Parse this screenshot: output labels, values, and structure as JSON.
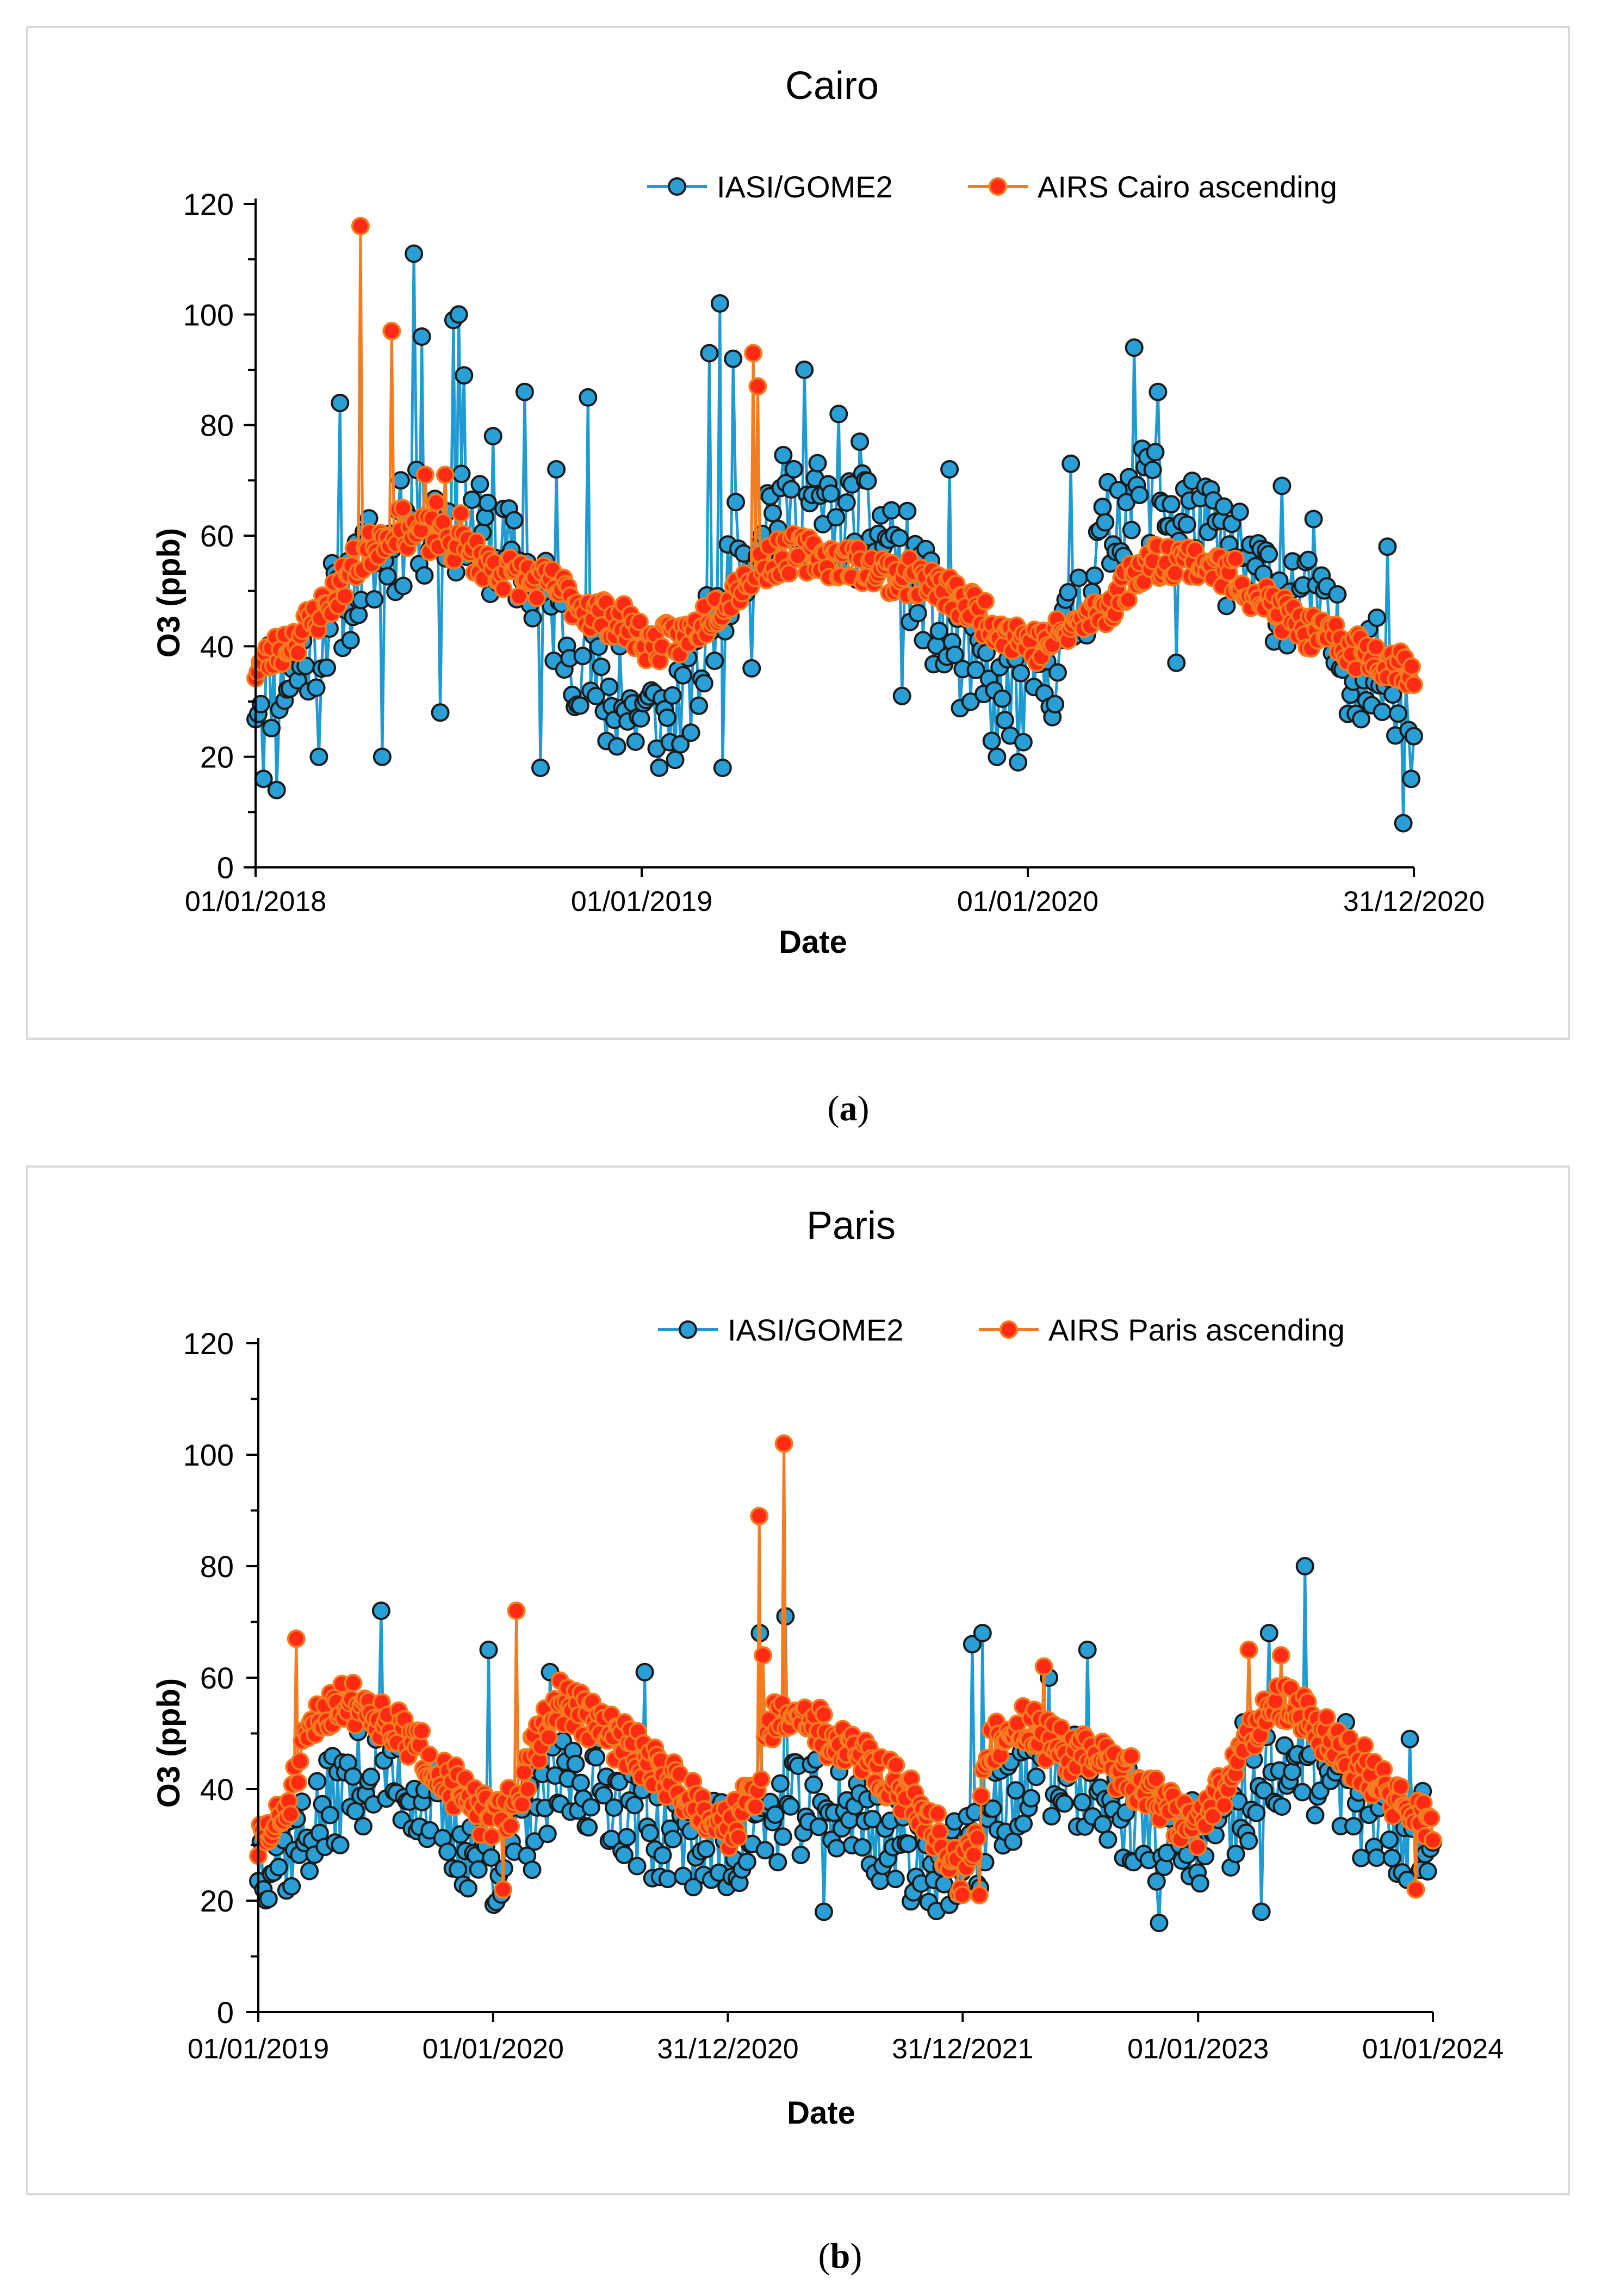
{
  "chart_data": [
    {
      "type": "line",
      "title": "Cairo",
      "caption": "a",
      "xlabel": "Date",
      "ylabel": "O3 (ppb)",
      "ylim": [
        0,
        120
      ],
      "yticks": [
        0,
        20,
        40,
        60,
        80,
        100,
        120
      ],
      "xlim": [
        "2018-01-01",
        "2020-12-31"
      ],
      "xticks": [
        {
          "date": "2018-01-01",
          "label": "01/01/2018"
        },
        {
          "date": "2019-01-01",
          "label": "01/01/2019"
        },
        {
          "date": "2020-01-01",
          "label": "01/01/2020"
        },
        {
          "date": "2020-12-31",
          "label": "31/12/2020"
        }
      ],
      "legend_position": "top-right",
      "series": [
        {
          "name": "IASI/GOME2",
          "color": "#1f9bd1",
          "marker_fill": "#2a9fd6",
          "marker_edge": "#1a1a1a",
          "knots": [
            [
              0,
              32
            ],
            [
              40,
              36
            ],
            [
              70,
              46
            ],
            [
              110,
              55
            ],
            [
              150,
              62
            ],
            [
              190,
              62
            ],
            [
              230,
              58
            ],
            [
              280,
              46
            ],
            [
              330,
              30
            ],
            [
              365,
              27
            ],
            [
              390,
              26
            ],
            [
              420,
              35
            ],
            [
              450,
              55
            ],
            [
              480,
              64
            ],
            [
              520,
              66
            ],
            [
              560,
              62
            ],
            [
              600,
              60
            ],
            [
              630,
              50
            ],
            [
              660,
              38
            ],
            [
              700,
              31
            ],
            [
              730,
              32
            ],
            [
              760,
              38
            ],
            [
              800,
              58
            ],
            [
              830,
              70
            ],
            [
              870,
              65
            ],
            [
              910,
              58
            ],
            [
              950,
              52
            ],
            [
              990,
              48
            ],
            [
              1030,
              38
            ],
            [
              1095,
              32
            ]
          ],
          "amplitude": 10,
          "spikes": [
            [
              8,
              16
            ],
            [
              20,
              14
            ],
            [
              60,
              20
            ],
            [
              80,
              84
            ],
            [
              120,
              20
            ],
            [
              136,
              70
            ],
            [
              150,
              111
            ],
            [
              156,
              96
            ],
            [
              175,
              28
            ],
            [
              188,
              99
            ],
            [
              192,
              100
            ],
            [
              198,
              89
            ],
            [
              225,
              78
            ],
            [
              254,
              86
            ],
            [
              270,
              18
            ],
            [
              285,
              72
            ],
            [
              315,
              85
            ],
            [
              345,
              40
            ],
            [
              428,
              93
            ],
            [
              440,
              102
            ],
            [
              442,
              18
            ],
            [
              452,
              92
            ],
            [
              470,
              36
            ],
            [
              520,
              90
            ],
            [
              550,
              82
            ],
            [
              570,
              77
            ],
            [
              610,
              31
            ],
            [
              655,
              72
            ],
            [
              700,
              20
            ],
            [
              721,
              19
            ],
            [
              770,
              73
            ],
            [
              830,
              94
            ],
            [
              852,
              86
            ],
            [
              870,
              37
            ],
            [
              970,
              69
            ],
            [
              1000,
              63
            ],
            [
              1070,
              58
            ],
            [
              1085,
              8
            ],
            [
              1092,
              16
            ]
          ],
          "n_points": 440,
          "seed": 11
        },
        {
          "name": "AIRS Cairo ascending",
          "color": "#f47c20",
          "marker_fill": "#ff2a14",
          "marker_edge": "#f47c20",
          "knots": [
            [
              0,
              36
            ],
            [
              40,
              42
            ],
            [
              70,
              48
            ],
            [
              95,
              55
            ],
            [
              130,
              62
            ],
            [
              165,
              60
            ],
            [
              200,
              57
            ],
            [
              240,
              53
            ],
            [
              280,
              51
            ],
            [
              320,
              46
            ],
            [
              350,
              44
            ],
            [
              375,
              40
            ],
            [
              410,
              42
            ],
            [
              450,
              50
            ],
            [
              480,
              55
            ],
            [
              510,
              57
            ],
            [
              540,
              56
            ],
            [
              570,
              55
            ],
            [
              600,
              53
            ],
            [
              630,
              52
            ],
            [
              660,
              49
            ],
            [
              700,
              44
            ],
            [
              740,
              40
            ],
            [
              770,
              43
            ],
            [
              810,
              48
            ],
            [
              840,
              55
            ],
            [
              870,
              56
            ],
            [
              900,
              55
            ],
            [
              930,
              52
            ],
            [
              970,
              46
            ],
            [
              1000,
              42
            ],
            [
              1030,
              40
            ],
            [
              1060,
              38
            ],
            [
              1095,
              36
            ]
          ],
          "amplitude": 3.5,
          "spikes": [
            [
              100,
              116
            ],
            [
              128,
              97
            ],
            [
              160,
              71
            ],
            [
              170,
              66
            ],
            [
              180,
              71
            ],
            [
              195,
              64
            ],
            [
              470,
              93
            ],
            [
              474,
              87
            ]
          ],
          "n_points": 520,
          "seed": 23
        }
      ]
    },
    {
      "type": "line",
      "title": "Paris",
      "caption": "b",
      "xlabel": "Date",
      "ylabel": "O3 (ppb)",
      "ylim": [
        0,
        120
      ],
      "yticks": [
        0,
        20,
        40,
        60,
        80,
        100,
        120
      ],
      "xlim": [
        "2019-01-01",
        "2024-01-01"
      ],
      "xticks": [
        {
          "date": "2019-01-01",
          "label": "01/01/2019"
        },
        {
          "date": "2020-01-01",
          "label": "01/01/2020"
        },
        {
          "date": "2020-12-31",
          "label": "31/12/2020"
        },
        {
          "date": "2021-12-31",
          "label": "31/12/2021"
        },
        {
          "date": "2023-01-01",
          "label": "01/01/2023"
        },
        {
          "date": "2024-01-01",
          "label": "01/01/2024"
        }
      ],
      "legend_position": "top-right",
      "series": [
        {
          "name": "IASI/GOME2",
          "color": "#1f9bd1",
          "marker_fill": "#2a9fd6",
          "marker_edge": "#1a1a1a",
          "knots": [
            [
              0,
              28
            ],
            [
              60,
              30
            ],
            [
              120,
              38
            ],
            [
              180,
              44
            ],
            [
              240,
              40
            ],
            [
              300,
              32
            ],
            [
              365,
              27
            ],
            [
              420,
              33
            ],
            [
              480,
              42
            ],
            [
              540,
              40
            ],
            [
              600,
              33
            ],
            [
              680,
              31
            ],
            [
              731,
              29
            ],
            [
              790,
              34
            ],
            [
              850,
              37
            ],
            [
              910,
              37
            ],
            [
              980,
              30
            ],
            [
              1095,
              25
            ],
            [
              1150,
              36
            ],
            [
              1210,
              43
            ],
            [
              1270,
              41
            ],
            [
              1340,
              36
            ],
            [
              1400,
              32
            ],
            [
              1461,
              29
            ],
            [
              1520,
              33
            ],
            [
              1580,
              43
            ],
            [
              1640,
              44
            ],
            [
              1700,
              38
            ],
            [
              1760,
              32
            ],
            [
              1826,
              33
            ]
          ],
          "amplitude": 9,
          "spikes": [
            [
              190,
              72
            ],
            [
              360,
              65
            ],
            [
              455,
              61
            ],
            [
              600,
              61
            ],
            [
              780,
              68
            ],
            [
              820,
              71
            ],
            [
              1110,
              66
            ],
            [
              1125,
              68
            ],
            [
              1230,
              60
            ],
            [
              1290,
              65
            ],
            [
              1530,
              52
            ],
            [
              1570,
              68
            ],
            [
              1626,
              80
            ],
            [
              1690,
              52
            ],
            [
              1790,
              49
            ],
            [
              880,
              18
            ],
            [
              1400,
              16
            ],
            [
              1560,
              18
            ]
          ],
          "n_points": 460,
          "seed": 37
        },
        {
          "name": "AIRS Paris ascending",
          "color": "#f47c20",
          "marker_fill": "#ff2a14",
          "marker_edge": "#f47c20",
          "knots": [
            [
              0,
              30
            ],
            [
              40,
              35
            ],
            [
              80,
              50
            ],
            [
              120,
              56
            ],
            [
              170,
              55
            ],
            [
              230,
              49
            ],
            [
              280,
              44
            ],
            [
              330,
              37
            ],
            [
              365,
              34
            ],
            [
              400,
              38
            ],
            [
              440,
              50
            ],
            [
              470,
              56
            ],
            [
              510,
              53
            ],
            [
              570,
              48
            ],
            [
              620,
              44
            ],
            [
              680,
              38
            ],
            [
              731,
              33
            ],
            [
              770,
              39
            ],
            [
              800,
              52
            ],
            [
              840,
              54
            ],
            [
              890,
              49
            ],
            [
              950,
              45
            ],
            [
              1000,
              40
            ],
            [
              1050,
              33
            ],
            [
              1095,
              24
            ],
            [
              1120,
              35
            ],
            [
              1140,
              48
            ],
            [
              1190,
              52
            ],
            [
              1250,
              47
            ],
            [
              1320,
              45
            ],
            [
              1380,
              40
            ],
            [
              1430,
              35
            ],
            [
              1461,
              33
            ],
            [
              1500,
              40
            ],
            [
              1540,
              50
            ],
            [
              1580,
              56
            ],
            [
              1620,
              54
            ],
            [
              1670,
              48
            ],
            [
              1720,
              44
            ],
            [
              1770,
              38
            ],
            [
              1800,
              35
            ],
            [
              1826,
              34
            ]
          ],
          "amplitude": 4,
          "spikes": [
            [
              60,
              67
            ],
            [
              400,
              72
            ],
            [
              780,
              89
            ],
            [
              785,
              64
            ],
            [
              817,
              102
            ],
            [
              1220,
              62
            ],
            [
              1540,
              65
            ],
            [
              1590,
              64
            ],
            [
              380,
              22
            ],
            [
              1800,
              22
            ],
            [
              1120,
              21
            ]
          ],
          "n_points": 620,
          "seed": 51
        }
      ]
    }
  ]
}
